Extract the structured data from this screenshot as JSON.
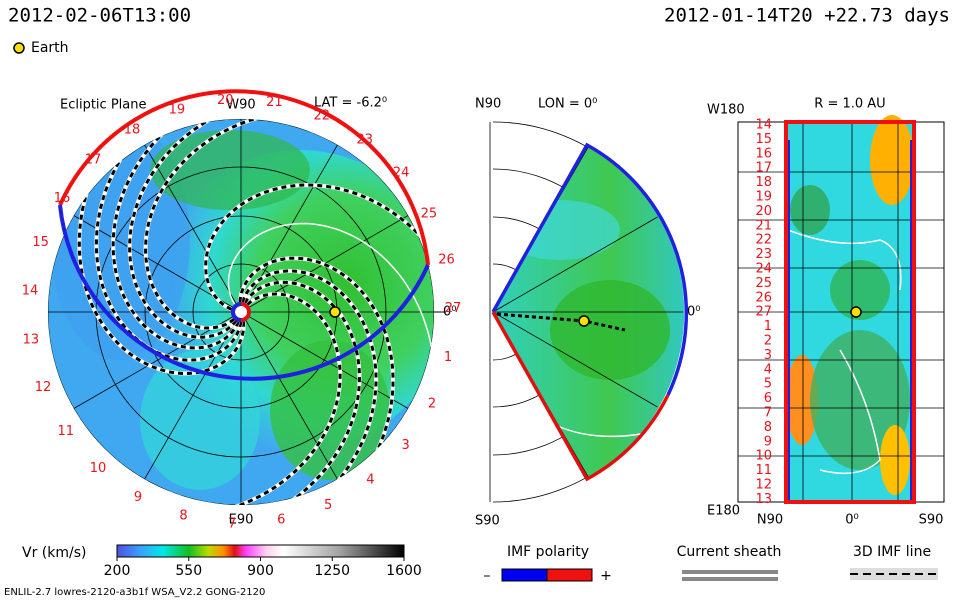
{
  "header": {
    "time": "2012-02-06T13:00",
    "run": "2012-01-14T20 +22.73 days"
  },
  "legend_earth": "Earth",
  "ecliptic": {
    "title": "Ecliptic Plane",
    "top": "W90",
    "lat": "LAT = -6.2⁰",
    "bottom": "E90",
    "right": "0⁰",
    "rim_labels": [
      1,
      2,
      3,
      4,
      5,
      6,
      7,
      8,
      9,
      10,
      11,
      12,
      13,
      14,
      15,
      16,
      17,
      18,
      19,
      20,
      21,
      22,
      23,
      24,
      25,
      26,
      27
    ]
  },
  "meridional": {
    "top": "N90",
    "lon": "LON = 0⁰",
    "right": "0⁰",
    "bottom": "S90"
  },
  "radial": {
    "top": "W180",
    "r": "R = 1.0 AU",
    "bottom": "E180",
    "row_labels": [
      14,
      15,
      16,
      17,
      18,
      19,
      20,
      21,
      22,
      23,
      24,
      25,
      26,
      27,
      1,
      2,
      3,
      4,
      5,
      6,
      7,
      8,
      9,
      10,
      11,
      12,
      13
    ],
    "x_labels": [
      "N90",
      "0⁰",
      "S90"
    ]
  },
  "colorbar": {
    "label": "Vr (km/s)",
    "lim": [
      200,
      1600
    ],
    "ticks": [
      200,
      550,
      900,
      1250,
      1600
    ]
  },
  "imf": {
    "title": "IMF polarity",
    "minus": "–",
    "plus": "+"
  },
  "sheath": "Current sheath",
  "imf_line": "3D IMF line",
  "footer": "ENLIL-2.7 lowres-2120-a3b1f WSA_V2.2 GONG-2120"
}
